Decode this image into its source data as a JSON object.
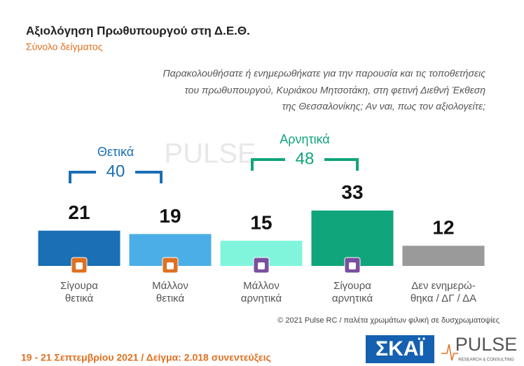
{
  "chart_data": {
    "type": "bar",
    "title": "Αξιολόγηση Πρωθυπουργού στη Δ.Ε.Θ.",
    "subtitle": "Σύνολο δείγματος",
    "question": [
      "Παρακολουθήσατε ή ενημερωθήκατε για την παρουσία και τις τοποθετήσεις",
      "του πρωθυπουργού, Κυριάκου Μητσοτάκη, στη φετινή Διεθνή Έκθεση",
      "της Θεσσαλονίκης; Αν ναι, πως τον αξιολογείτε;"
    ],
    "categories": [
      [
        "Σίγουρα",
        "θετικά"
      ],
      [
        "Μάλλον",
        "θετικά"
      ],
      [
        "Μάλλον",
        "αρνητικά"
      ],
      [
        "Σίγουρα",
        "αρνητικά"
      ],
      [
        "Δεν ενημερώ-",
        "θηκα / ΔΓ / ΔΑ"
      ]
    ],
    "values": [
      21,
      19,
      15,
      33,
      12
    ],
    "colors": [
      "#1a6fb5",
      "#4caee6",
      "#80f5dc",
      "#10a57b",
      "#9a9a9a"
    ],
    "ylim": [
      0,
      60
    ],
    "groups": [
      {
        "label": "Θετικά",
        "value": 40,
        "color": "#1a6fb5",
        "from": 0,
        "to": 1
      },
      {
        "label": "Αρνητικά",
        "value": 48,
        "color": "#10a57b",
        "from": 2,
        "to": 3
      }
    ],
    "credit": "© 2021 Pulse RC  /  παλέτα χρωμάτων φιλική σε δυσχρωματοψίες",
    "footer": "19 - 21 Σεπτεμβρίου 2021  /  Δείγμα:  2.018 συνεντεύξεις",
    "logos": {
      "skai": "ΣΚΑΪ",
      "pulse": "PULSE",
      "pulse_sub": "RESEARCH & CONSULTING"
    }
  }
}
